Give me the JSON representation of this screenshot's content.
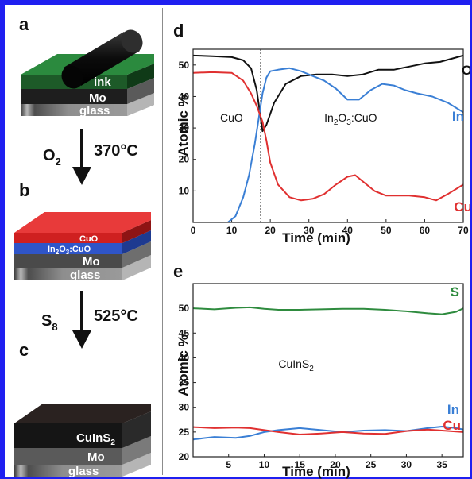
{
  "panels": {
    "a": {
      "letter": "a",
      "layers": {
        "ink": "ink",
        "mo": "Mo",
        "glass": "glass"
      }
    },
    "b": {
      "letter": "b",
      "layers": {
        "cuo": "CuO",
        "in2o3": "In",
        "in2o3_sub": "2",
        "in2o3_o": "O",
        "in2o3_sub2": "3",
        "in2o3_rest": ":CuO",
        "mo": "Mo",
        "glass": "glass"
      }
    },
    "c": {
      "letter": "c",
      "layers": {
        "cuins2": "CuInS",
        "cuins2_sub": "2",
        "mo": "Mo",
        "glass": "glass"
      }
    }
  },
  "steps": {
    "step1": {
      "reagent": "O",
      "reagent_sub": "2",
      "temperature": "370°C"
    },
    "step2": {
      "reagent": "S",
      "reagent_sub": "8",
      "temperature": "525°C"
    }
  },
  "chart_data": [
    {
      "panel": "d",
      "type": "line",
      "xlabel": "Time (min)",
      "ylabel": "Atomic %",
      "xlim": [
        0,
        70
      ],
      "ylim": [
        0,
        55
      ],
      "xticks": [
        0,
        10,
        20,
        30,
        40,
        50,
        60,
        70
      ],
      "yticks": [
        10,
        20,
        30,
        40,
        50
      ],
      "vline_x": 17.5,
      "region_labels": [
        {
          "text": "CuO",
          "x": 7,
          "y": 32
        },
        {
          "text": "In",
          "sub": "2",
          "mid": "O",
          "sub2": "3",
          "tail": ":CuO",
          "x": 34,
          "y": 32
        }
      ],
      "series": [
        {
          "name": "O",
          "color": "#111111",
          "x": [
            0,
            5,
            10,
            13,
            15,
            16.5,
            18,
            19,
            21,
            24,
            28,
            32,
            36,
            40,
            44,
            48,
            52,
            56,
            60,
            64,
            67,
            70
          ],
          "y": [
            53,
            52.8,
            52.5,
            51.5,
            49,
            42,
            29,
            31,
            38,
            44,
            46.5,
            47,
            47,
            46.5,
            47,
            48.5,
            48.5,
            49.5,
            50.5,
            51,
            52,
            53
          ]
        },
        {
          "name": "In",
          "color": "#3a7fd5",
          "x": [
            9,
            11,
            13,
            14.5,
            16,
            17,
            18,
            19,
            20,
            22,
            25,
            28,
            31,
            34,
            37,
            40,
            43,
            46,
            49,
            52,
            55,
            58,
            62,
            66,
            70
          ],
          "y": [
            0,
            2,
            8,
            15,
            25,
            33,
            41,
            46,
            48,
            48.5,
            49,
            48,
            46.5,
            45,
            42.5,
            39,
            39,
            42,
            44,
            43.5,
            42,
            41,
            40,
            38,
            35
          ]
        },
        {
          "name": "Cu",
          "color": "#e03030",
          "x": [
            0,
            5,
            10,
            13,
            15,
            16.5,
            18,
            19,
            20,
            22,
            25,
            28,
            31,
            34,
            37,
            40,
            42,
            44,
            47,
            50,
            53,
            56,
            60,
            63,
            66,
            70
          ],
          "y": [
            47.5,
            47.7,
            47.5,
            45,
            41,
            37,
            32,
            26,
            19,
            12,
            8,
            7,
            7.5,
            9,
            12,
            14.5,
            15,
            13,
            10,
            8.5,
            8.5,
            8.5,
            8,
            7,
            9,
            12
          ]
        }
      ]
    },
    {
      "panel": "e",
      "type": "line",
      "xlabel": "Time (min)",
      "ylabel": "Atomic %",
      "xlim": [
        0,
        38
      ],
      "ylim": [
        20,
        55
      ],
      "xticks": [
        5,
        10,
        15,
        20,
        25,
        30,
        35
      ],
      "yticks": [
        20,
        25,
        30,
        35,
        40,
        45,
        50
      ],
      "region_labels": [
        {
          "text": "CuInS",
          "sub": "2",
          "x": 12,
          "y": 38
        }
      ],
      "series": [
        {
          "name": "S",
          "color": "#2e8b3e",
          "x": [
            0,
            3,
            6,
            8,
            10,
            12,
            15,
            18,
            21,
            24,
            27,
            30,
            33,
            35,
            37,
            38
          ],
          "y": [
            50,
            49.8,
            50.1,
            50.2,
            49.9,
            49.7,
            49.7,
            49.8,
            49.9,
            49.9,
            49.7,
            49.4,
            49.0,
            48.8,
            49.3,
            50
          ]
        },
        {
          "name": "In",
          "color": "#3a7fd5",
          "x": [
            0,
            3,
            6,
            8,
            10,
            12,
            15,
            18,
            21,
            24,
            27,
            30,
            33,
            35,
            37,
            38
          ],
          "y": [
            23.5,
            24,
            23.8,
            24.2,
            25,
            25.4,
            25.8,
            25.4,
            25.0,
            25.3,
            25.4,
            25.2,
            25.8,
            26.1,
            25.8,
            25.5
          ]
        },
        {
          "name": "Cu",
          "color": "#e03030",
          "x": [
            0,
            3,
            6,
            8,
            10,
            12,
            15,
            18,
            21,
            24,
            27,
            30,
            33,
            35,
            37,
            38
          ],
          "y": [
            26,
            25.8,
            25.9,
            25.8,
            25.4,
            25.0,
            24.5,
            24.7,
            25.0,
            24.7,
            24.6,
            25.2,
            25.5,
            25.3,
            25.1,
            25.0
          ]
        }
      ]
    }
  ]
}
